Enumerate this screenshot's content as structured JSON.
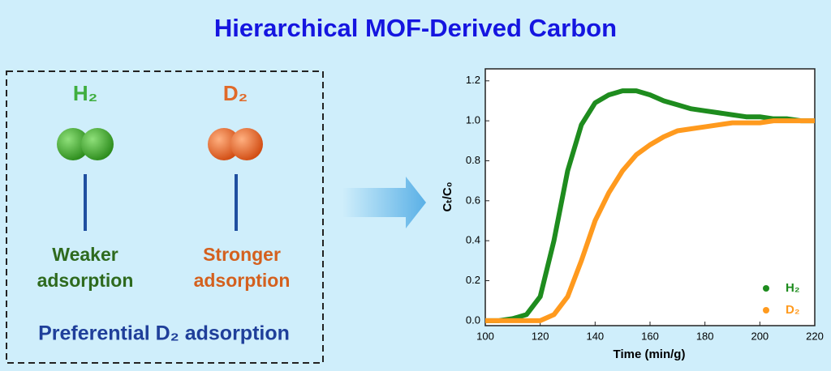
{
  "title": "Hierarchical MOF-Derived  Carbon",
  "left": {
    "h2": {
      "label": "H₂",
      "caption": [
        "Weaker",
        "adsorption"
      ]
    },
    "d2": {
      "label": "D₂",
      "caption": [
        "Stronger",
        "adsorption"
      ]
    },
    "footer": "Preferential D₂ adsorption"
  },
  "chart_data": {
    "type": "line",
    "xlabel": "Time (min/g)",
    "ylabel": "Cₜ/C₀",
    "x": [
      100,
      105,
      110,
      115,
      120,
      125,
      130,
      135,
      140,
      145,
      150,
      155,
      160,
      165,
      170,
      175,
      180,
      185,
      190,
      195,
      200,
      205,
      210,
      215,
      220
    ],
    "series": [
      {
        "name": "H₂",
        "color": "#1e8c1e",
        "values": [
          0,
          0,
          0.01,
          0.03,
          0.12,
          0.4,
          0.75,
          0.98,
          1.09,
          1.13,
          1.15,
          1.15,
          1.13,
          1.1,
          1.08,
          1.06,
          1.05,
          1.04,
          1.03,
          1.02,
          1.02,
          1.01,
          1.01,
          1,
          1
        ]
      },
      {
        "name": "D₂",
        "color": "#ff9a1e",
        "values": [
          0,
          0,
          0,
          0,
          0,
          0.03,
          0.12,
          0.3,
          0.5,
          0.64,
          0.75,
          0.83,
          0.88,
          0.92,
          0.95,
          0.96,
          0.97,
          0.98,
          0.99,
          0.99,
          0.99,
          1,
          1,
          1,
          1
        ]
      }
    ],
    "xlim": [
      100,
      220
    ],
    "xticks": [
      100,
      120,
      140,
      160,
      180,
      200,
      220
    ],
    "ylim": [
      -0.025,
      1.26
    ],
    "yticks": [
      {
        "value": 0,
        "label": "0.0"
      },
      {
        "value": 0.2,
        "label": "0.2"
      },
      {
        "value": 0.4,
        "label": "0.4"
      },
      {
        "value": 0.6,
        "label": "0.6"
      },
      {
        "value": 0.8,
        "label": "0.8"
      },
      {
        "value": 1,
        "label": "1.0"
      },
      {
        "value": 1.2,
        "label": "1.2"
      }
    ],
    "legend": "lower-right"
  }
}
